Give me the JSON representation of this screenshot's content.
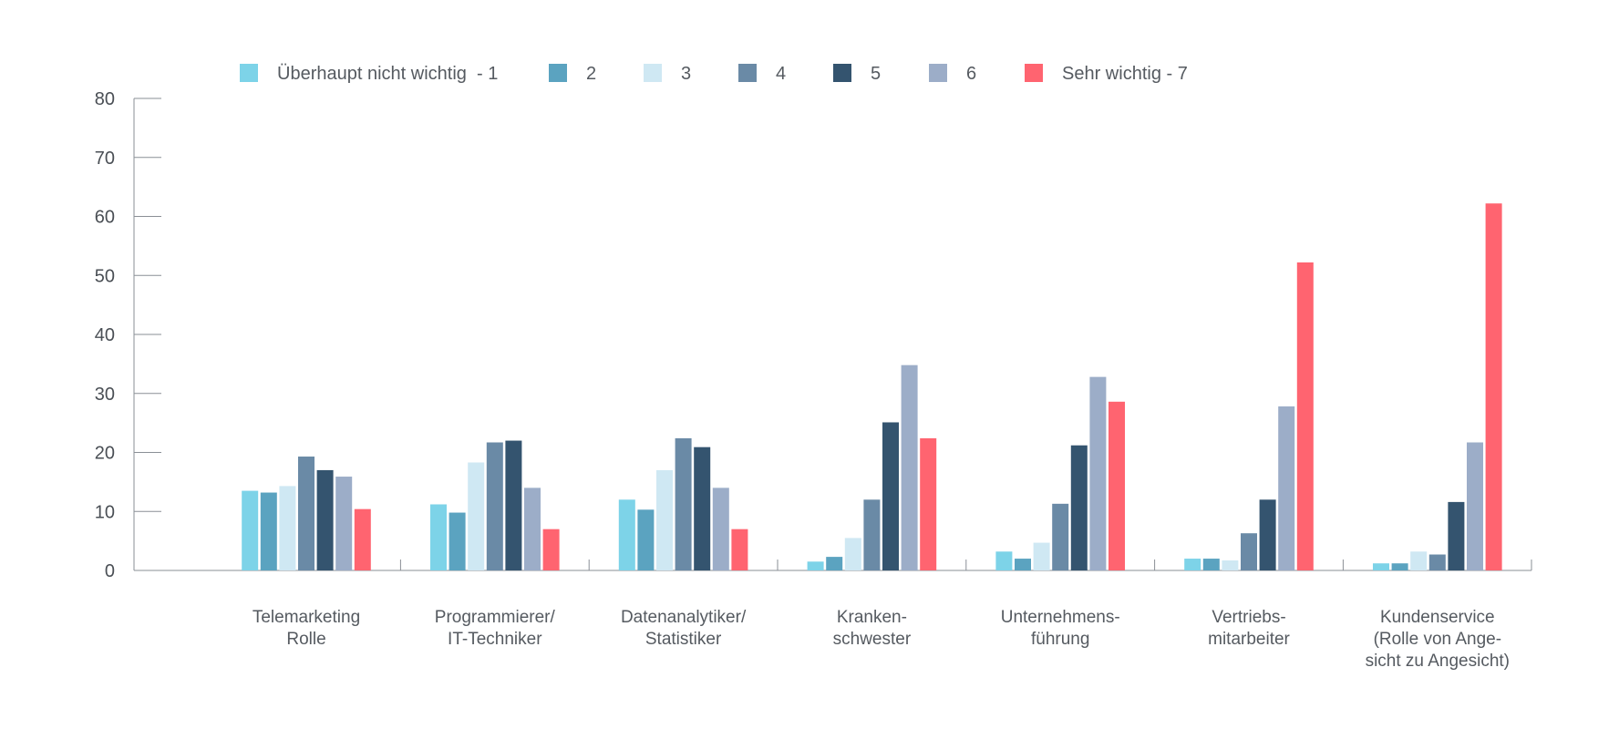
{
  "chart_data": {
    "type": "bar",
    "title": "",
    "xlabel": "",
    "ylabel": "",
    "ylim": [
      0,
      80
    ],
    "yticks": [
      0,
      10,
      20,
      30,
      40,
      50,
      60,
      70,
      80
    ],
    "grid": false,
    "legend_position": "top",
    "categories": [
      [
        "Telemarketing",
        "Rolle"
      ],
      [
        "Programmierer/",
        "IT-Techniker"
      ],
      [
        "Datenanalytiker/",
        "Statistiker"
      ],
      [
        "Kranken-",
        "schwester"
      ],
      [
        "Unternehmens-",
        "führung"
      ],
      [
        "Vertriebs-",
        "mitarbeiter"
      ],
      [
        "Kundenservice",
        "(Rolle von Ange-",
        "sicht zu Angesicht)"
      ]
    ],
    "series": [
      {
        "name": "Überhaupt nicht wichtig  - 1",
        "color": "#7dd3e8",
        "values": [
          13.5,
          11.2,
          12.0,
          1.5,
          3.2,
          2.0,
          1.2
        ]
      },
      {
        "name": "2",
        "color": "#5ba3c0",
        "values": [
          13.2,
          9.8,
          10.3,
          2.3,
          2.0,
          2.0,
          1.2
        ]
      },
      {
        "name": "3",
        "color": "#cfe8f3",
        "values": [
          14.3,
          18.3,
          17.0,
          5.5,
          4.7,
          1.7,
          3.2
        ]
      },
      {
        "name": "4",
        "color": "#6a8aa6",
        "values": [
          19.3,
          21.7,
          22.4,
          12.0,
          11.3,
          6.3,
          2.7
        ]
      },
      {
        "name": "5",
        "color": "#34546f",
        "values": [
          17.0,
          22.0,
          20.9,
          25.1,
          21.2,
          12.0,
          11.6
        ]
      },
      {
        "name": "6",
        "color": "#9cadc8",
        "values": [
          15.9,
          14.0,
          14.0,
          34.8,
          32.8,
          27.8,
          21.7
        ]
      },
      {
        "name": "Sehr wichtig - 7",
        "color": "#ff6470",
        "values": [
          10.4,
          7.0,
          7.0,
          22.4,
          28.6,
          52.2,
          62.2
        ]
      }
    ]
  }
}
